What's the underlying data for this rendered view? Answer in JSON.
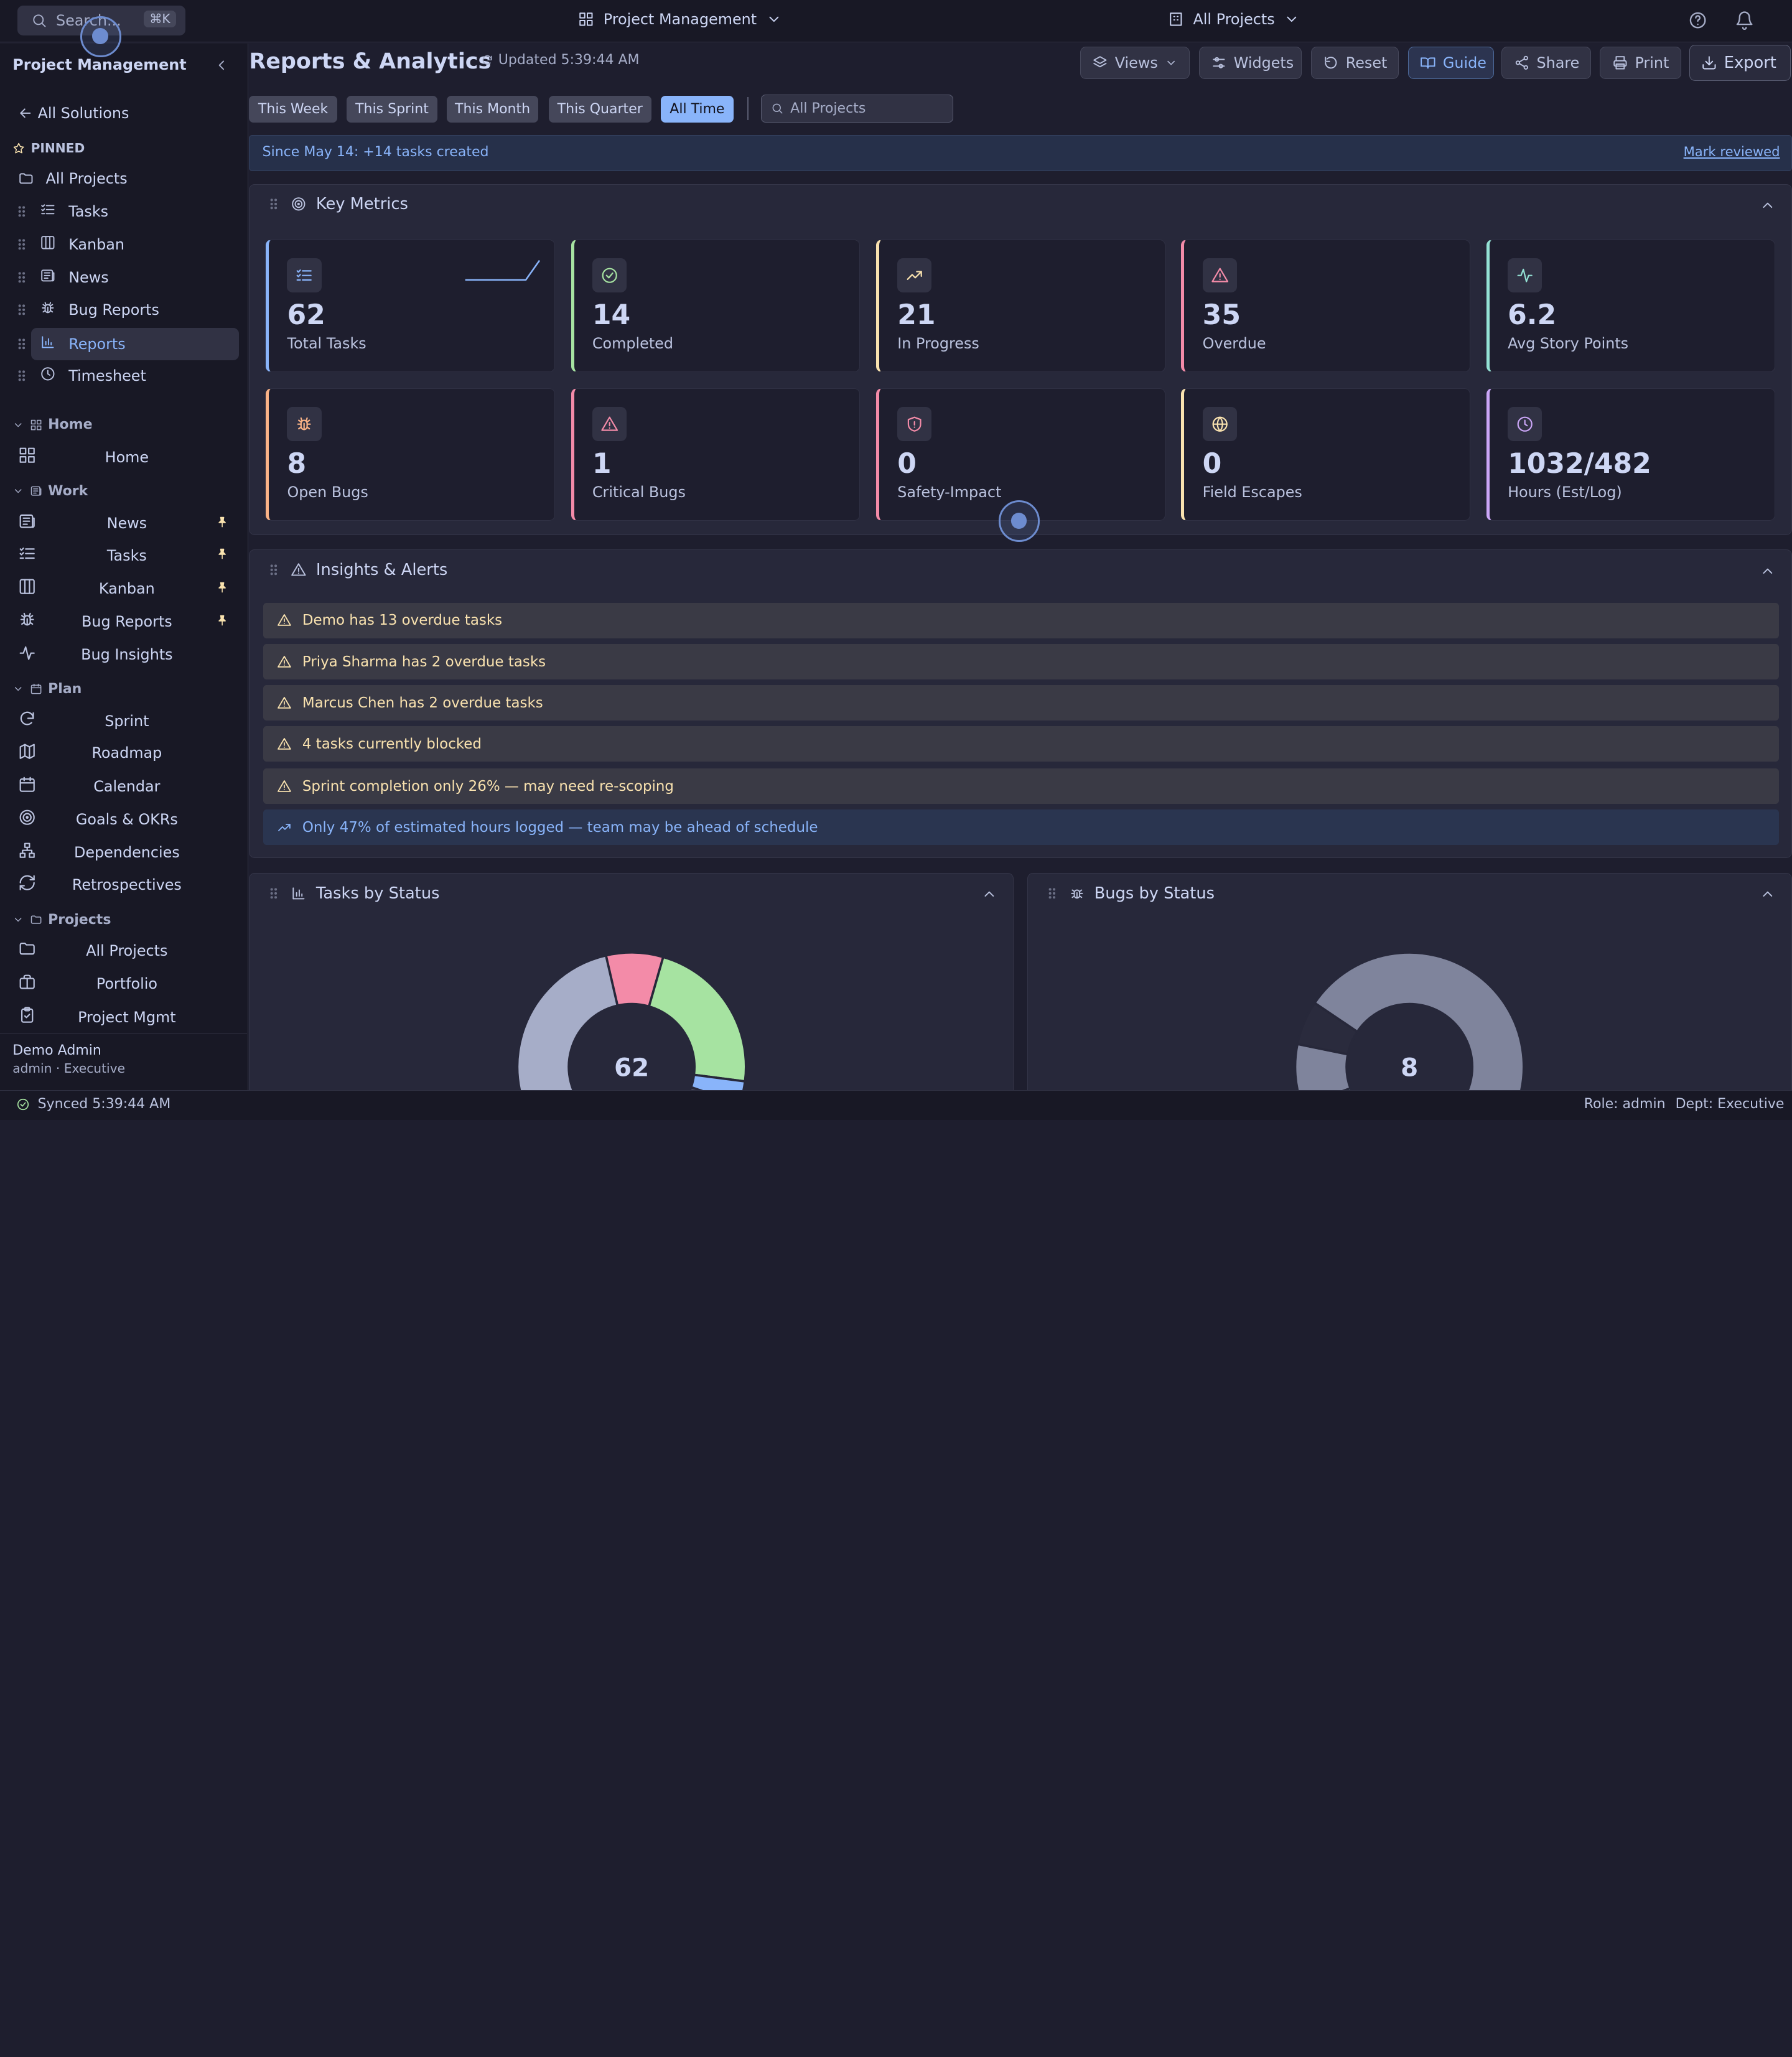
{
  "topbar": {
    "search_placeholder": "Search...",
    "search_shortcut": "⌘K",
    "app_switcher": "Project Management",
    "project_switcher": "All Projects"
  },
  "sidebar": {
    "title": "Project Management",
    "back": "All Solutions",
    "pinned_heading": "PINNED",
    "all_projects": "All Projects",
    "pinned": [
      {
        "label": "Tasks",
        "icon": "list-check-icon"
      },
      {
        "label": "Kanban",
        "icon": "columns-icon"
      },
      {
        "label": "News",
        "icon": "newspaper-icon"
      },
      {
        "label": "Bug Reports",
        "icon": "bug-icon"
      },
      {
        "label": "Reports",
        "icon": "bar-chart-icon",
        "active": true
      },
      {
        "label": "Timesheet",
        "icon": "clock-icon"
      }
    ],
    "sections": [
      {
        "title": "Home",
        "items": [
          {
            "label": "Home",
            "icon": "grid-icon"
          }
        ]
      },
      {
        "title": "Work",
        "items": [
          {
            "label": "News",
            "icon": "newspaper-icon",
            "pinned": true
          },
          {
            "label": "Tasks",
            "icon": "list-check-icon",
            "pinned": true
          },
          {
            "label": "Kanban",
            "icon": "columns-icon",
            "pinned": true
          },
          {
            "label": "Bug Reports",
            "icon": "bug-icon",
            "pinned": true
          },
          {
            "label": "Bug Insights",
            "icon": "activity-icon"
          }
        ]
      },
      {
        "title": "Plan",
        "items": [
          {
            "label": "Sprint",
            "icon": "refresh-icon"
          },
          {
            "label": "Roadmap",
            "icon": "map-icon"
          },
          {
            "label": "Calendar",
            "icon": "calendar-icon"
          },
          {
            "label": "Goals & OKRs",
            "icon": "target-icon"
          },
          {
            "label": "Dependencies",
            "icon": "network-icon"
          },
          {
            "label": "Retrospectives",
            "icon": "rotate-icon"
          }
        ]
      },
      {
        "title": "Projects",
        "items": [
          {
            "label": "All Projects",
            "icon": "folder-icon"
          },
          {
            "label": "Portfolio",
            "icon": "briefcase-icon"
          },
          {
            "label": "Project Mgmt",
            "icon": "clipboard-icon"
          }
        ]
      }
    ],
    "user": {
      "name": "Demo Admin",
      "role": "admin · Executive"
    }
  },
  "header": {
    "title": "Reports & Analytics",
    "updated": "Updated 5:39:44 AM",
    "buttons": {
      "views": "Views",
      "widgets": "Widgets",
      "reset": "Reset",
      "guide": "Guide",
      "share": "Share",
      "print": "Print",
      "export": "Export"
    }
  },
  "filters": {
    "ranges": [
      "This Week",
      "This Sprint",
      "This Month",
      "This Quarter",
      "All Time"
    ],
    "active_range": "All Time",
    "project_filter": "All Projects"
  },
  "banner": {
    "since": "Since May 14:",
    "delta": "+14 tasks created",
    "action": "Mark reviewed"
  },
  "metrics": {
    "title": "Key Metrics",
    "cards": [
      {
        "value": "62",
        "label": "Total Tasks",
        "color": "#89b4fa",
        "icon": "list-check-icon"
      },
      {
        "value": "14",
        "label": "Completed",
        "color": "#a6e3a1",
        "icon": "check-circle-icon"
      },
      {
        "value": "21",
        "label": "In Progress",
        "color": "#f9e2af",
        "icon": "trending-up-icon"
      },
      {
        "value": "35",
        "label": "Overdue",
        "color": "#f38ba8",
        "icon": "alert-triangle-icon"
      },
      {
        "value": "6.2",
        "label": "Avg Story Points",
        "color": "#94e2d5",
        "icon": "activity-icon"
      },
      {
        "value": "8",
        "label": "Open Bugs",
        "color": "#fab387",
        "icon": "bug-icon"
      },
      {
        "value": "1",
        "label": "Critical Bugs",
        "color": "#f38ba8",
        "icon": "alert-triangle-icon"
      },
      {
        "value": "0",
        "label": "Safety-Impact",
        "color": "#f38ba8",
        "icon": "shield-alert-icon"
      },
      {
        "value": "0",
        "label": "Field Escapes",
        "color": "#f9e2af",
        "icon": "globe-icon"
      },
      {
        "value": "1032/482",
        "label": "Hours (Est/Log)",
        "color": "#cba6f7",
        "icon": "clock-icon"
      }
    ]
  },
  "insights": {
    "title": "Insights & Alerts",
    "items": [
      {
        "text": "Demo has 13 overdue tasks",
        "kind": "warning"
      },
      {
        "text": "Priya Sharma has 2 overdue tasks",
        "kind": "warning"
      },
      {
        "text": "Marcus Chen has 2 overdue tasks",
        "kind": "warning"
      },
      {
        "text": "4 tasks currently blocked",
        "kind": "warning"
      },
      {
        "text": "Sprint completion only 26% — may need re-scoping",
        "kind": "warning"
      },
      {
        "text": "Only 47% of estimated hours logged — team may be ahead of schedule",
        "kind": "info"
      }
    ]
  },
  "tasks_by_status": {
    "title": "Tasks by Status",
    "total": "62"
  },
  "bugs_by_status": {
    "title": "Bugs by Status",
    "total": "8"
  },
  "chart_data": [
    {
      "type": "pie",
      "title": "Tasks by Status",
      "center_label": "62",
      "slices": [
        {
          "value": 5,
          "color": "#f38ba8"
        },
        {
          "value": 14,
          "color": "#a6e3a1"
        },
        {
          "value": 2,
          "color": "#89b4fa"
        },
        {
          "value": 20,
          "color": "#45475a"
        },
        {
          "value": 21,
          "color": "#a6adc8"
        }
      ]
    },
    {
      "type": "pie",
      "title": "Bugs by Status",
      "center_label": "8",
      "slices": [
        {
          "value": 0.7,
          "color": "#7f849c"
        },
        {
          "value": 0.5,
          "color": "#2a2b3d"
        },
        {
          "value": 6.1,
          "color": "#7f849c"
        },
        {
          "value": 0.7,
          "color": "#94e2d5"
        }
      ]
    }
  ],
  "statusbar": {
    "synced": "Synced 5:39:44 AM",
    "role": "Role: admin",
    "dept": "Dept: Executive"
  }
}
